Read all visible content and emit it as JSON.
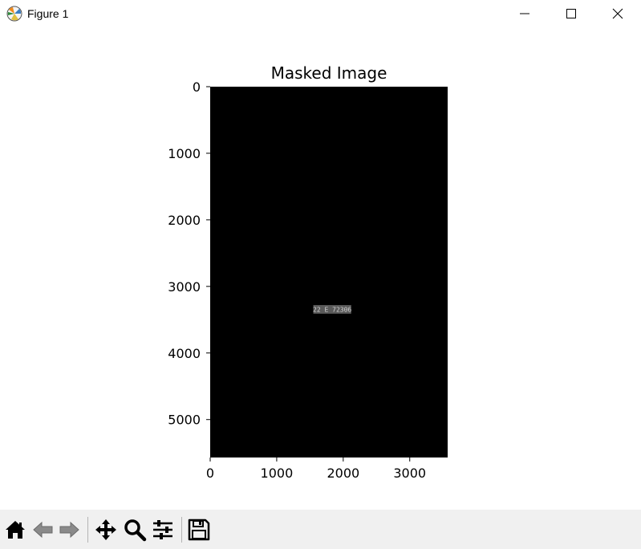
{
  "window": {
    "title": "Figure 1",
    "icons": {
      "app": "matplotlib-icon",
      "minimize": "minimize-icon",
      "maximize": "maximize-icon",
      "close": "close-icon"
    }
  },
  "toolbar": {
    "buttons": [
      "home-icon",
      "back-icon",
      "forward-icon",
      "pan-icon",
      "zoom-icon",
      "configure-subplots-icon",
      "save-icon"
    ]
  },
  "chart_data": {
    "type": "image",
    "title": "Masked Image",
    "xlim": [
      0,
      3570
    ],
    "ylim": [
      5570,
      0
    ],
    "xticks": [
      0,
      1000,
      2000,
      3000
    ],
    "yticks": [
      0,
      1000,
      2000,
      3000,
      4000,
      5000
    ],
    "background_color": "#000000",
    "visible_region": {
      "x": [
        1550,
        2120
      ],
      "y": [
        3280,
        3410
      ],
      "text": "22 E 72306",
      "fill_color": "#5a5a5a",
      "text_color": "#d0d0d0"
    }
  }
}
